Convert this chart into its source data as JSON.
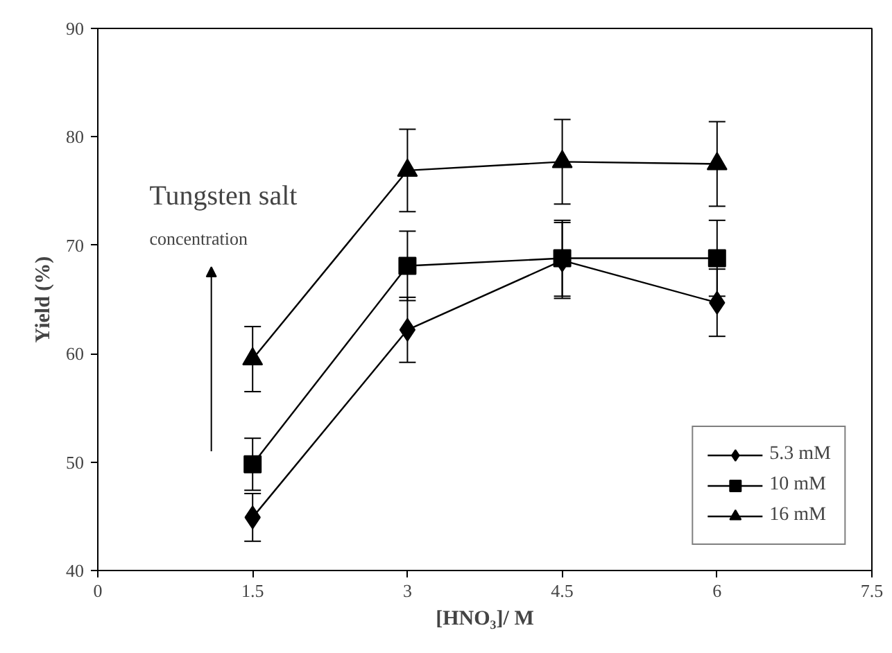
{
  "chart_data": {
    "type": "line",
    "xlabel": "[HNO₃]/ M",
    "ylabel": "Yield (%)",
    "x": [
      1.5,
      3,
      4.5,
      6
    ],
    "xlim": [
      0,
      7.5
    ],
    "xticks": [
      0,
      1.5,
      3,
      4.5,
      6,
      7.5
    ],
    "ylim": [
      40,
      90
    ],
    "yticks": [
      40,
      50,
      60,
      70,
      80,
      90
    ],
    "grid": false,
    "legend": "bottom right",
    "annotations": [
      "Tungsten salt",
      "concentration"
    ],
    "series": [
      {
        "name": "5.3 mM",
        "color": "#000000",
        "marker": "diamond",
        "values": [
          44.9,
          62.2,
          68.6,
          64.7
        ],
        "errors": [
          2.2,
          3.0,
          3.5,
          3.1
        ]
      },
      {
        "name": "10 mM",
        "color": "#000000",
        "marker": "square",
        "values": [
          49.8,
          68.1,
          68.8,
          68.8
        ],
        "errors": [
          2.4,
          3.2,
          3.5,
          3.5
        ]
      },
      {
        "name": "16 mM",
        "color": "#000000",
        "marker": "triangle",
        "values": [
          59.5,
          76.9,
          77.7,
          77.5
        ],
        "errors": [
          3.0,
          3.8,
          3.9,
          3.9
        ]
      }
    ]
  }
}
